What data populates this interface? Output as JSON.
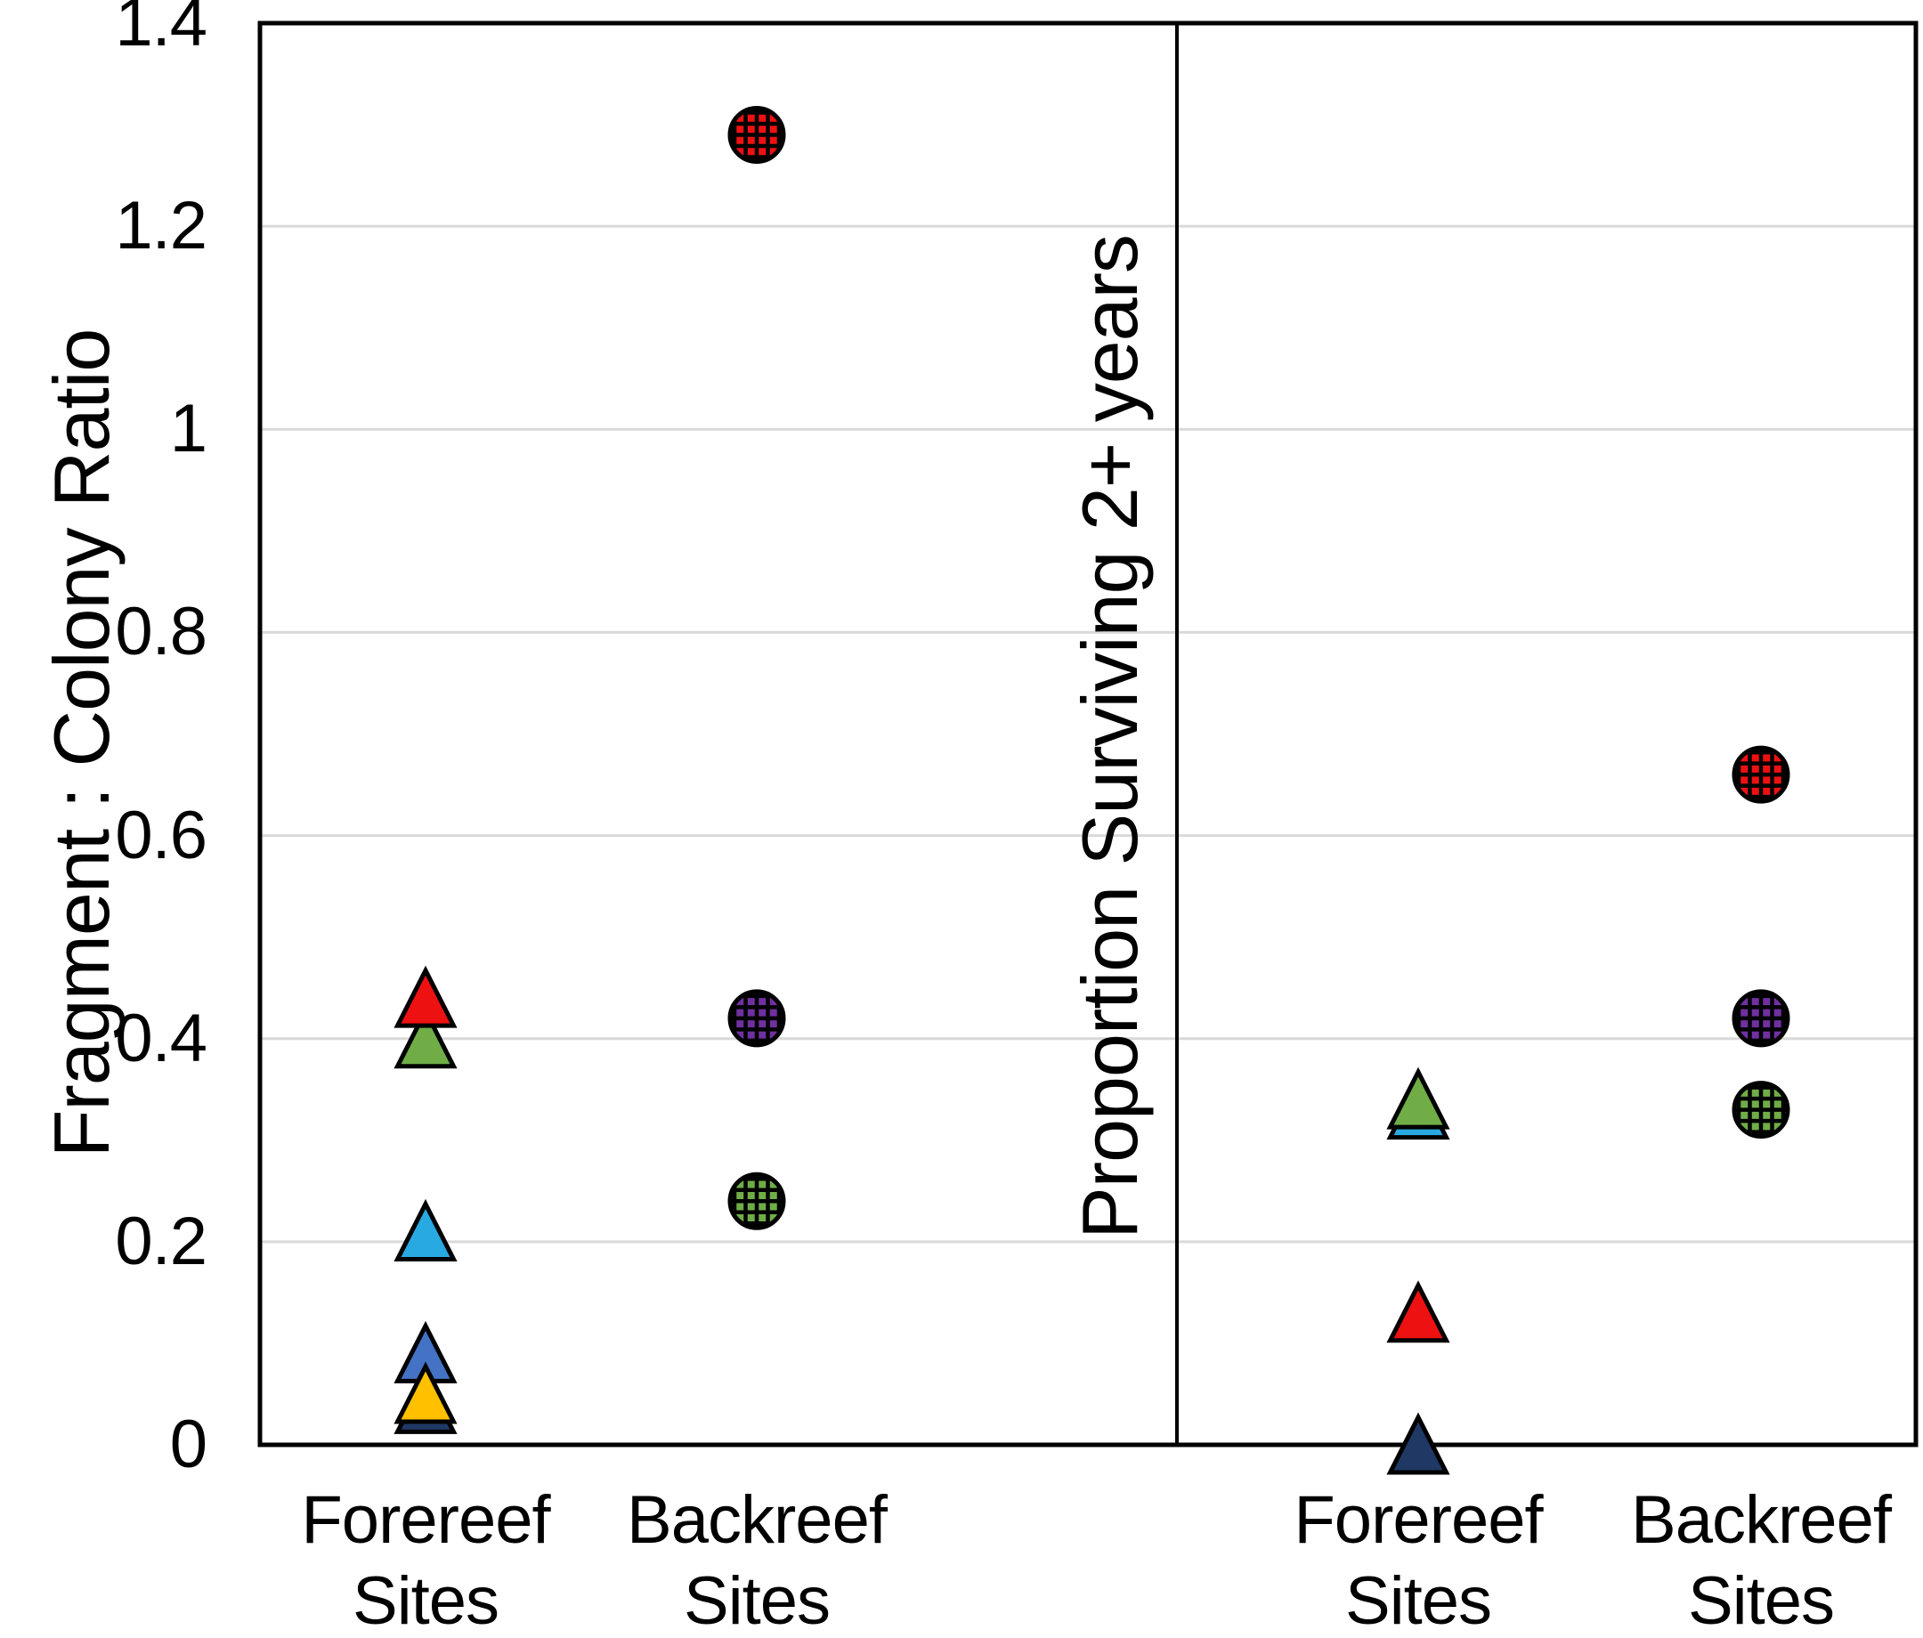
{
  "y_axis": {
    "tick_labels": [
      "1.4",
      "1.2",
      "1",
      "0.8",
      "0.6",
      "0.4",
      "0.2",
      "0"
    ]
  },
  "colors": {
    "red": "#EE1111",
    "green": "#70AD47",
    "cyan": "#29A9E1",
    "blue": "#4472C4",
    "orange": "#FFC000",
    "navy": "#1F3864",
    "purple": "#7030A0",
    "gridline": "#D9D9D9",
    "frame": "#000000"
  },
  "chart_data": [
    {
      "type": "scatter",
      "panel": "left",
      "ylabel": "Fragment : Colony Ratio",
      "ylim": [
        0,
        1.4
      ],
      "ytick_step": 0.2,
      "grid": true,
      "categories": [
        "Forereef Sites",
        "Backreef Sites"
      ],
      "series": [
        {
          "category": "Forereef Sites",
          "marker": "triangle",
          "points": [
            {
              "color": "green",
              "value": 0.4
            },
            {
              "color": "red",
              "value": 0.44
            },
            {
              "color": "cyan",
              "value": 0.21
            },
            {
              "color": "blue",
              "value": 0.09
            },
            {
              "color": "navy",
              "value": 0.04
            },
            {
              "color": "orange",
              "value": 0.05
            }
          ]
        },
        {
          "category": "Backreef Sites",
          "marker": "circle-crosshatch",
          "points": [
            {
              "color": "red",
              "value": 1.29
            },
            {
              "color": "purple",
              "value": 0.42
            },
            {
              "color": "green",
              "value": 0.24
            }
          ]
        }
      ]
    },
    {
      "type": "scatter",
      "panel": "right",
      "ylabel": "Proportion Surviving 2+ years",
      "ylim": [
        0,
        1.4
      ],
      "ytick_step": 0.2,
      "grid": true,
      "categories": [
        "Forereef Sites",
        "Backreef Sites"
      ],
      "series": [
        {
          "category": "Forereef Sites",
          "marker": "triangle",
          "points": [
            {
              "color": "cyan",
              "value": 0.33
            },
            {
              "color": "green",
              "value": 0.34
            },
            {
              "color": "red",
              "value": 0.13
            },
            {
              "color": "navy",
              "value": 0.0
            }
          ]
        },
        {
          "category": "Backreef Sites",
          "marker": "circle-crosshatch",
          "points": [
            {
              "color": "red",
              "value": 0.66
            },
            {
              "color": "purple",
              "value": 0.42
            },
            {
              "color": "green",
              "value": 0.33
            }
          ]
        }
      ]
    }
  ]
}
